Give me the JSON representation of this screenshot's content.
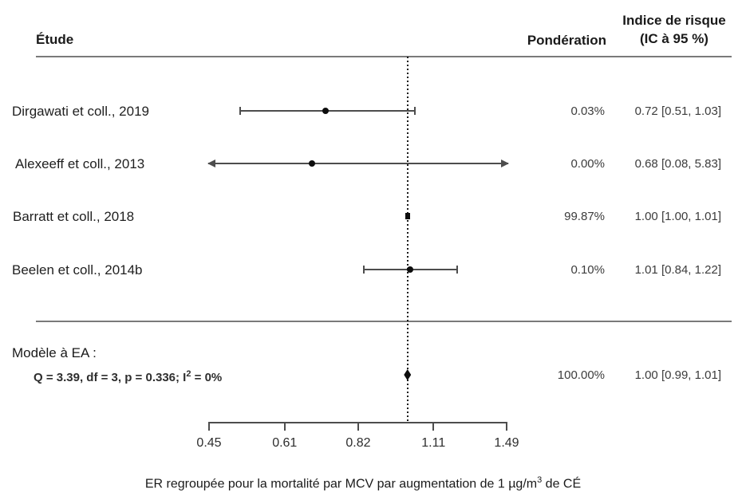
{
  "header": {
    "study_col": "Étude",
    "weight_col": "Pondération",
    "effect_col_line1": "Indice de risque",
    "effect_col_line2": "(IC à 95 %)"
  },
  "colors": {
    "ink": "#1a1a1a",
    "line": "#4d4d4d",
    "marker": "#0d0d0d",
    "rule": "#7a7a7a"
  },
  "chart_data": {
    "type": "forest",
    "x_scale": "log",
    "axis_ticks": [
      0.45,
      0.61,
      0.82,
      1.11,
      1.49
    ],
    "reference_line": 1.0,
    "grid": "off",
    "studies": [
      {
        "label": "Dirgawati et coll., 2019",
        "weight": "0.03%",
        "estimate_label": "0.72 [0.51, 1.03]",
        "value": 0.72,
        "ci_low": 0.51,
        "ci_high": 1.03,
        "marker": "circle"
      },
      {
        "label": "Alexeeff et coll., 2013",
        "weight": "0.00%",
        "estimate_label": "0.68 [0.08, 5.83]",
        "value": 0.68,
        "ci_low": 0.08,
        "ci_high": 5.83,
        "marker": "circle"
      },
      {
        "label": "Barratt et coll., 2018",
        "weight": "99.87%",
        "estimate_label": "1.00 [1.00, 1.01]",
        "value": 1.0,
        "ci_low": 1.0,
        "ci_high": 1.01,
        "marker": "square"
      },
      {
        "label": "Beelen et coll., 2014b",
        "weight": "0.10%",
        "estimate_label": "1.01 [0.84, 1.22]",
        "value": 1.01,
        "ci_low": 0.84,
        "ci_high": 1.22,
        "marker": "circle"
      }
    ],
    "summary": {
      "model_label": "Modèle à EA :",
      "stats_prefix": "Q = 3.39, df = 3, p  = 0.336; I",
      "stats_sup": "2",
      "stats_suffix": " = 0%",
      "weight": "100.00%",
      "estimate_label": "1.00 [0.99, 1.01]",
      "value": 1.0,
      "ci_low": 0.99,
      "ci_high": 1.01,
      "marker": "diamond"
    },
    "xlabel": {
      "prefix": "ER regroupée pour la mortalité par MCV par augmentation de 1 µg/m",
      "sup": "3",
      "suffix": " de CÉ"
    }
  }
}
